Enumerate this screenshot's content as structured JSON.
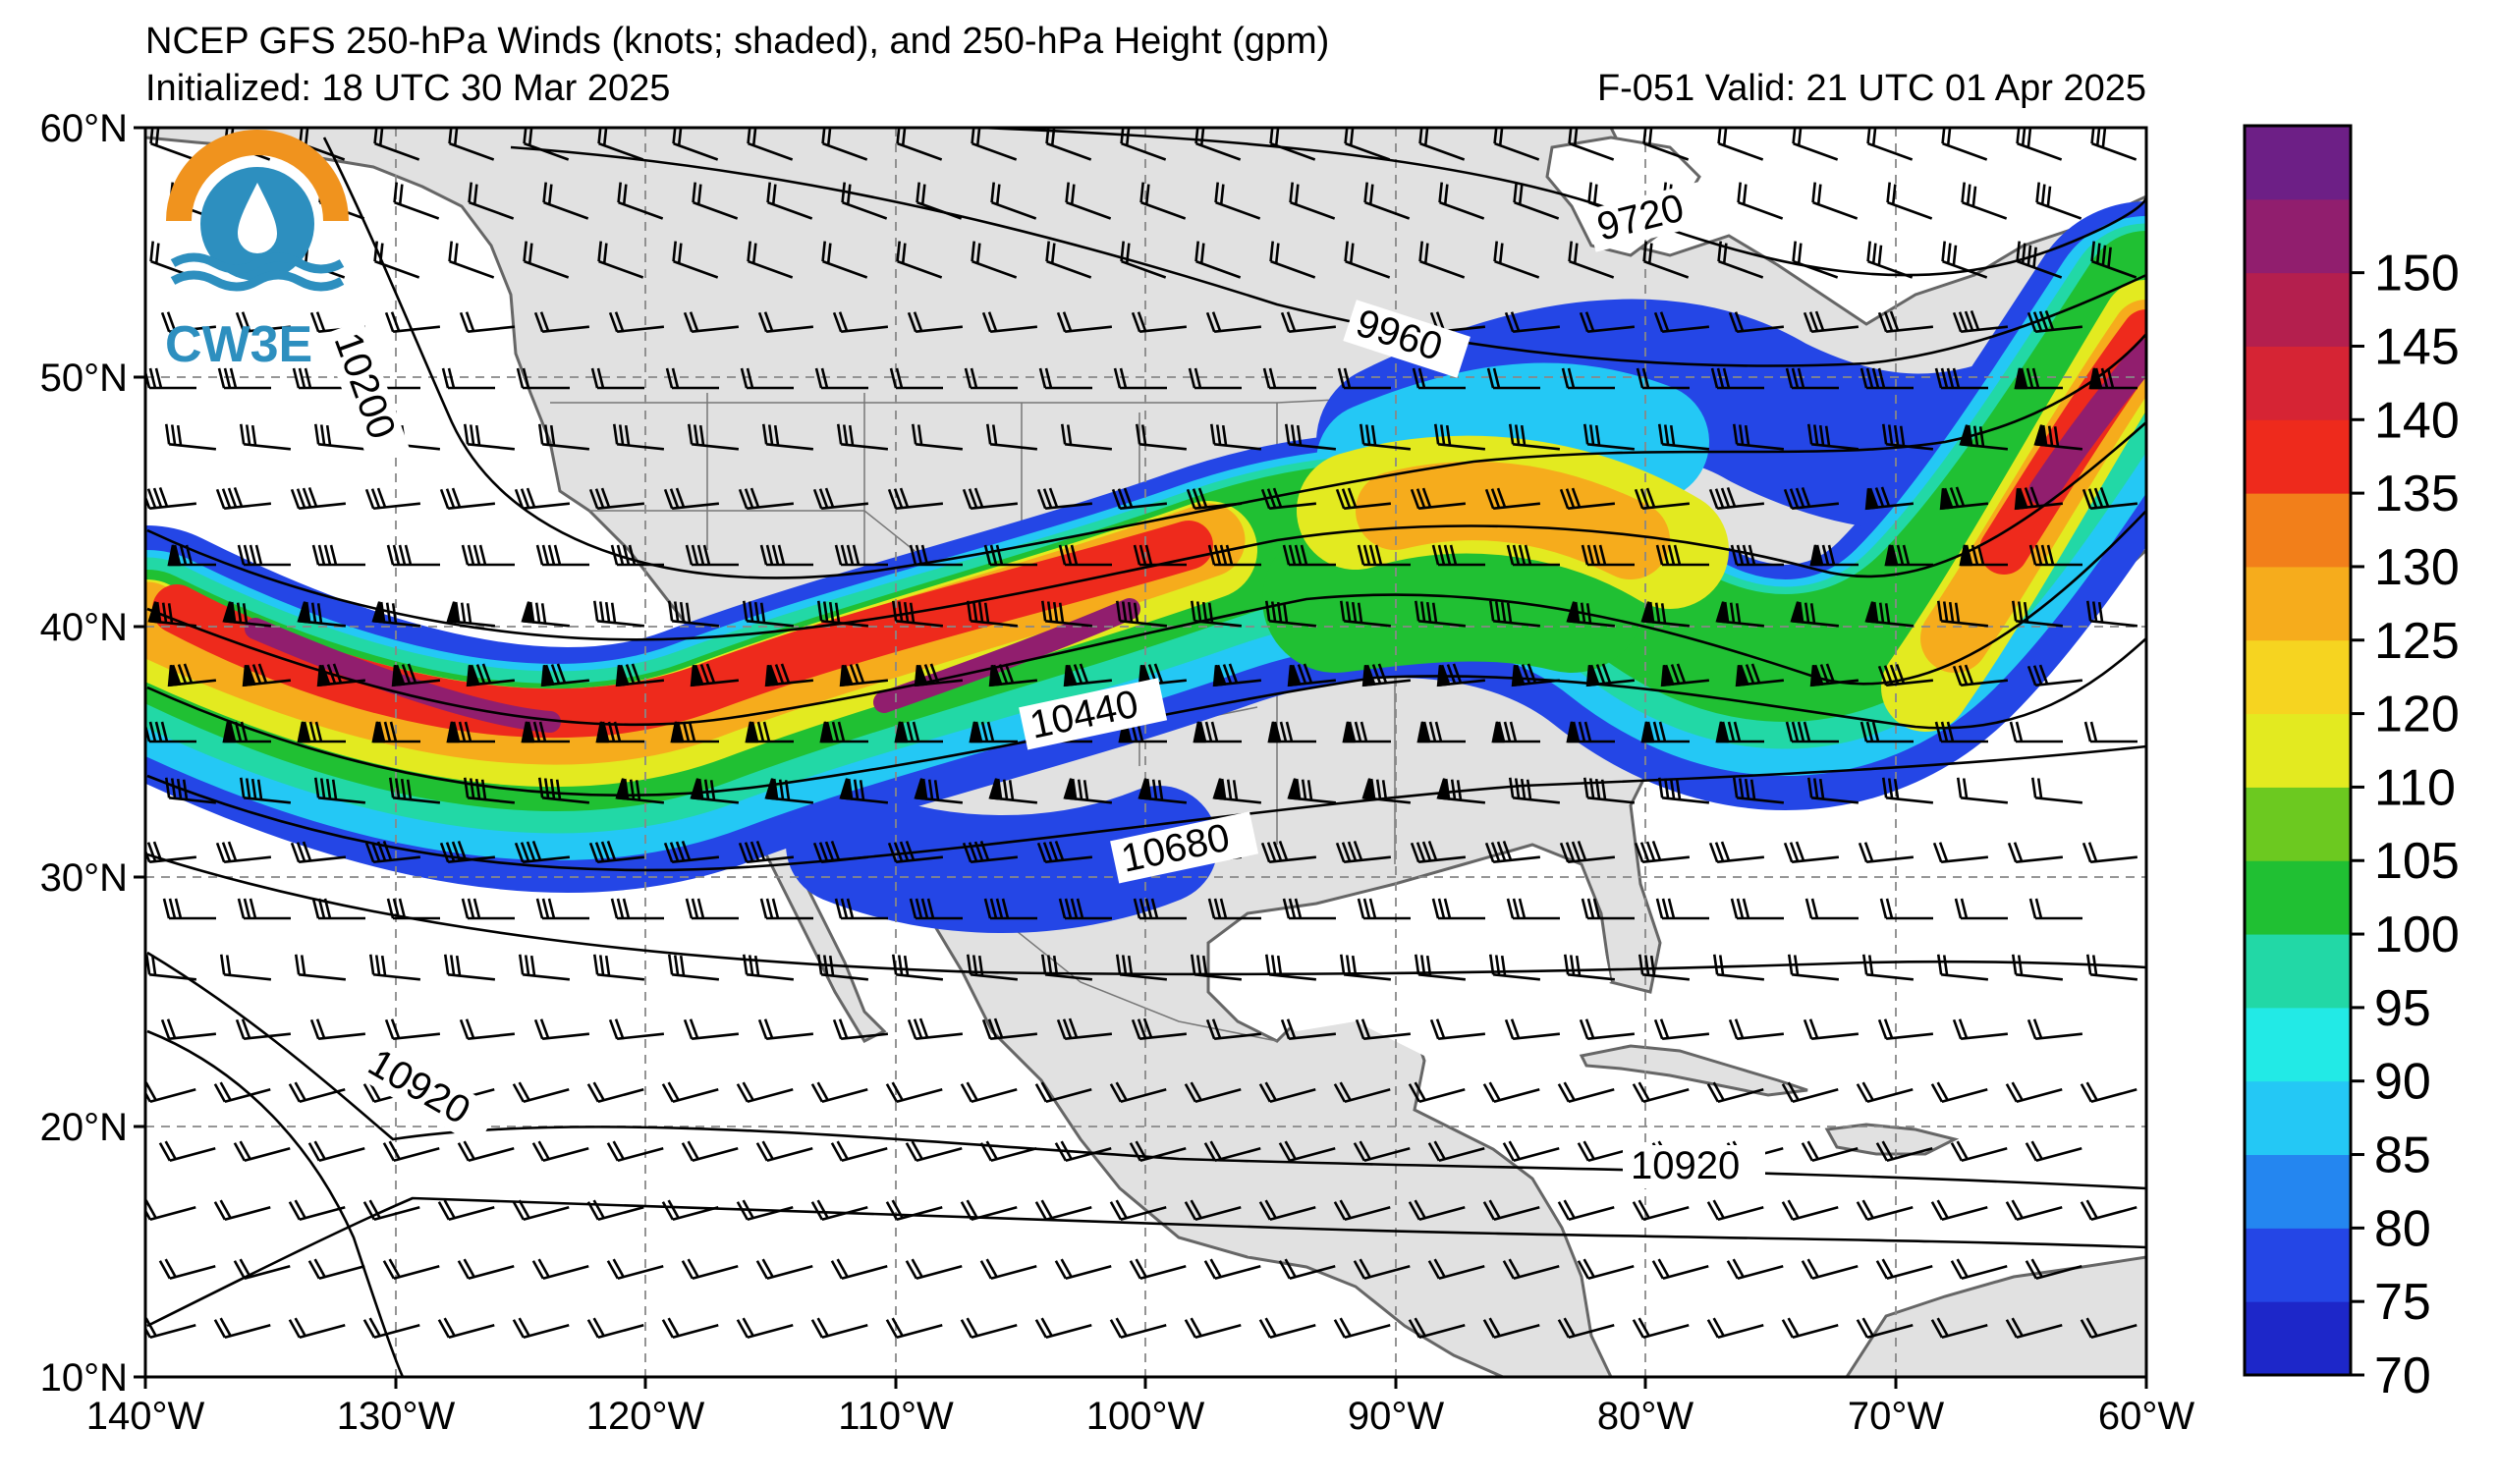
{
  "title_line1": "NCEP GFS 250-hPa Winds (knots; shaded), and 250-hPa Height (gpm)",
  "title_line2": "Initialized: 18 UTC 30 Mar 2025",
  "valid_text": "F-051  Valid: 21 UTC 01 Apr 2025",
  "logo_text": "CW3E",
  "lat_labels": [
    "60°N",
    "50°N",
    "40°N",
    "30°N",
    "20°N",
    "10°N"
  ],
  "lon_labels": [
    "140°W",
    "130°W",
    "120°W",
    "110°W",
    "100°W",
    "90°W",
    "80°W",
    "70°W",
    "60°W"
  ],
  "colorbar": {
    "labels": [
      "70",
      "75",
      "80",
      "85",
      "90",
      "95",
      "100",
      "105",
      "110",
      "120",
      "125",
      "130",
      "135",
      "140",
      "145",
      "150"
    ],
    "colors": [
      "#1d27c9",
      "#2446e6",
      "#2486f0",
      "#24c8f5",
      "#22eae6",
      "#22d8a6",
      "#20c033",
      "#6cc920",
      "#e3ea20",
      "#f6d420",
      "#f6ac1c",
      "#f27f1a",
      "#ee2a1c",
      "#d62434",
      "#b41f4e",
      "#911e6e",
      "#6d1f86"
    ]
  },
  "contour_labels": {
    "c9720": "9720",
    "c9960": "9960",
    "c10200": "10200",
    "c10440": "10440",
    "c10680": "10680",
    "c10920a": "10920",
    "c10920b": "10920"
  },
  "colors": {
    "land": "#e1e1e1",
    "ocean": "#ffffff",
    "coast": "#666666",
    "grid": "#888888"
  }
}
